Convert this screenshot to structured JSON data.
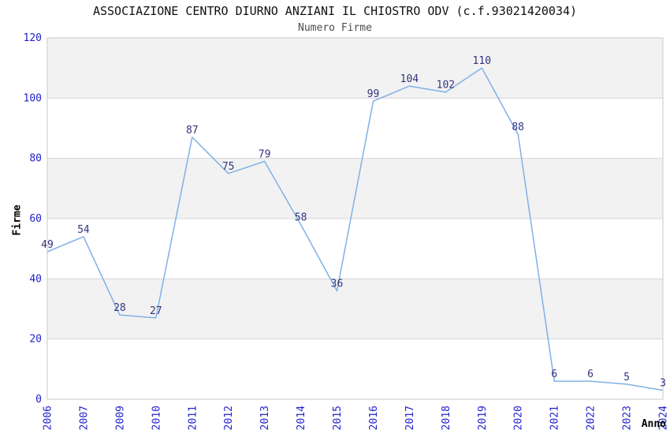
{
  "chart_data": {
    "type": "line",
    "title": "ASSOCIAZIONE CENTRO DIURNO ANZIANI IL CHIOSTRO ODV (c.f.93021420034)",
    "subtitle": "Numero Firme",
    "xlabel": "Anno",
    "ylabel": "Firme",
    "categories": [
      "2006",
      "2007",
      "2009",
      "2010",
      "2011",
      "2012",
      "2013",
      "2014",
      "2015",
      "2016",
      "2017",
      "2018",
      "2019",
      "2020",
      "2021",
      "2022",
      "2023",
      "2024"
    ],
    "values": [
      49,
      54,
      28,
      27,
      87,
      75,
      79,
      58,
      36,
      99,
      104,
      102,
      110,
      88,
      6,
      6,
      5,
      3
    ],
    "ylim": [
      0,
      120
    ],
    "y_ticks": [
      0,
      20,
      40,
      60,
      80,
      100,
      120
    ],
    "grid": "horizontal-bands-alternating",
    "legend": "none",
    "point_markers": "none",
    "x_tick_rotation": -90,
    "colors": {
      "line": "#7fb1e6",
      "tick_label": "#2222cc",
      "data_label": "#333380",
      "band": "#f2f2f2",
      "gridline": "#d6d6d6",
      "border": "#c9c9c9",
      "title": "#111111",
      "subtitle": "#4d4d4d",
      "axis_label": "#000000",
      "background": "#ffffff"
    }
  }
}
